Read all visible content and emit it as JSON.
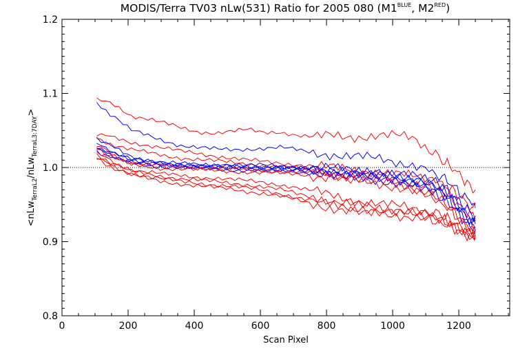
{
  "chart_data": {
    "type": "line",
    "title": {
      "main": "MODIS/Terra TV03 nLw(531) Ratio for 2005 080 (M1",
      "sup1": "BLUE",
      "mid": ", M2",
      "sup2": "RED",
      "end": ")"
    },
    "xlabel": "Scan Pixel",
    "ylabel": {
      "a": "<nLw",
      "a_sub": "TerraL2",
      "b": "/nLw",
      "b_sub": "TerraL3:7DAY",
      "c": ">"
    },
    "xlim": [
      0,
      1354
    ],
    "ylim": [
      0.8,
      1.2
    ],
    "xticks": [
      "0",
      "200",
      "400",
      "600",
      "800",
      "1000",
      "1200"
    ],
    "xtick_values": [
      0,
      200,
      400,
      600,
      800,
      1000,
      1200
    ],
    "yticks": [
      "0.8",
      "0.9",
      "1.0",
      "1.1",
      "1.2"
    ],
    "ytick_values": [
      0.8,
      0.9,
      1.0,
      1.1,
      1.2
    ],
    "reference_line": 1.0,
    "series_colors": {
      "M1": "#0000ff",
      "M2": "#ff0000"
    },
    "x": [
      105,
      160,
      210,
      260,
      310,
      360,
      410,
      460,
      510,
      560,
      610,
      660,
      710,
      760,
      810,
      860,
      910,
      960,
      1010,
      1060,
      1110,
      1150,
      1180,
      1210,
      1240,
      1250
    ],
    "series": [
      {
        "group": "M2",
        "values": [
          1.093,
          1.084,
          1.07,
          1.066,
          1.06,
          1.053,
          1.048,
          1.047,
          1.049,
          1.051,
          1.047,
          1.048,
          1.044,
          1.041,
          1.043,
          1.041,
          1.042,
          1.044,
          1.043,
          1.039,
          1.024,
          1.009,
          1.0,
          0.987,
          0.971,
          0.97
        ]
      },
      {
        "group": "M1",
        "values": [
          1.086,
          1.068,
          1.05,
          1.043,
          1.036,
          1.03,
          1.027,
          1.025,
          1.024,
          1.025,
          1.026,
          1.027,
          1.024,
          1.02,
          1.018,
          1.015,
          1.014,
          1.012,
          1.008,
          1.004,
          0.997,
          0.987,
          0.977,
          0.963,
          0.953,
          0.952
        ]
      },
      {
        "group": "M2",
        "values": [
          1.046,
          1.04,
          1.034,
          1.03,
          1.026,
          1.022,
          1.019,
          1.016,
          1.013,
          1.01,
          1.008,
          1.006,
          1.004,
          1.002,
          1.0,
          0.998,
          0.996,
          0.994,
          0.991,
          0.988,
          0.984,
          0.978,
          0.97,
          0.958,
          0.946,
          0.945
        ]
      },
      {
        "group": "M2",
        "values": [
          1.038,
          1.03,
          1.024,
          1.02,
          1.016,
          1.013,
          1.011,
          1.009,
          1.007,
          1.005,
          1.003,
          1.001,
          0.999,
          0.996,
          0.993,
          0.991,
          0.989,
          0.987,
          0.984,
          0.98,
          0.975,
          0.968,
          0.958,
          0.945,
          0.934,
          0.932
        ]
      },
      {
        "group": "M1",
        "values": [
          1.04,
          1.026,
          1.015,
          1.01,
          1.007,
          1.005,
          1.004,
          1.004,
          1.004,
          1.003,
          1.003,
          1.002,
          1.001,
          1.0,
          0.999,
          0.997,
          0.996,
          0.994,
          0.991,
          0.988,
          0.983,
          0.975,
          0.964,
          0.95,
          0.937,
          0.935
        ]
      },
      {
        "group": "M1",
        "values": [
          1.032,
          1.02,
          1.012,
          1.008,
          1.005,
          1.004,
          1.003,
          1.002,
          1.002,
          1.001,
          1.001,
          1.0,
          0.999,
          0.997,
          0.996,
          0.994,
          0.993,
          0.991,
          0.988,
          0.985,
          0.98,
          0.971,
          0.96,
          0.944,
          0.93,
          0.928
        ]
      },
      {
        "group": "M1",
        "values": [
          1.028,
          1.018,
          1.01,
          1.006,
          1.004,
          1.003,
          1.002,
          1.001,
          1.0,
          1.0,
          0.999,
          0.999,
          0.998,
          0.996,
          0.994,
          0.992,
          0.99,
          0.988,
          0.985,
          0.982,
          0.977,
          0.968,
          0.956,
          0.94,
          0.926,
          0.924
        ]
      },
      {
        "group": "M1",
        "values": [
          1.025,
          1.015,
          1.008,
          1.005,
          1.003,
          1.002,
          1.001,
          1.0,
          0.999,
          0.998,
          0.998,
          0.997,
          0.996,
          0.995,
          0.993,
          0.99,
          0.988,
          0.985,
          0.982,
          0.979,
          0.973,
          0.964,
          0.952,
          0.936,
          0.922,
          0.92
        ]
      },
      {
        "group": "M1",
        "values": [
          1.022,
          1.012,
          1.006,
          1.003,
          1.001,
          1.0,
          0.999,
          0.998,
          0.997,
          0.996,
          0.996,
          0.995,
          0.994,
          0.993,
          0.991,
          0.988,
          0.986,
          0.983,
          0.98,
          0.976,
          0.97,
          0.96,
          0.948,
          0.932,
          0.918,
          0.917
        ]
      },
      {
        "group": "M2",
        "values": [
          1.03,
          1.016,
          1.006,
          1.004,
          1.002,
          1.001,
          1.0,
          0.999,
          0.998,
          0.997,
          0.996,
          0.995,
          0.994,
          0.992,
          0.99,
          0.987,
          0.984,
          0.981,
          0.977,
          0.972,
          0.965,
          0.955,
          0.942,
          0.928,
          0.915,
          0.913
        ]
      },
      {
        "group": "M2",
        "values": [
          1.026,
          1.012,
          1.004,
          1.001,
          0.999,
          0.998,
          0.997,
          0.996,
          0.995,
          0.994,
          0.993,
          0.992,
          0.991,
          0.989,
          0.987,
          0.984,
          0.981,
          0.978,
          0.974,
          0.969,
          0.962,
          0.952,
          0.94,
          0.926,
          0.914,
          0.912
        ]
      },
      {
        "group": "M2",
        "values": [
          1.02,
          1.006,
          0.997,
          0.994,
          0.991,
          0.989,
          0.987,
          0.986,
          0.984,
          0.982,
          0.98,
          0.977,
          0.973,
          0.968,
          0.963,
          0.958,
          0.954,
          0.951,
          0.948,
          0.945,
          0.941,
          0.935,
          0.928,
          0.918,
          0.91,
          0.909
        ]
      },
      {
        "group": "M2",
        "values": [
          1.017,
          1.004,
          0.995,
          0.991,
          0.988,
          0.985,
          0.983,
          0.981,
          0.979,
          0.977,
          0.974,
          0.97,
          0.965,
          0.96,
          0.955,
          0.951,
          0.948,
          0.945,
          0.943,
          0.941,
          0.937,
          0.931,
          0.924,
          0.915,
          0.908,
          0.907
        ]
      },
      {
        "group": "M2",
        "values": [
          1.014,
          1.0,
          0.992,
          0.988,
          0.984,
          0.981,
          0.979,
          0.977,
          0.975,
          0.972,
          0.969,
          0.965,
          0.96,
          0.955,
          0.95,
          0.946,
          0.943,
          0.941,
          0.939,
          0.937,
          0.934,
          0.928,
          0.921,
          0.913,
          0.907,
          0.906
        ]
      },
      {
        "group": "M2",
        "values": [
          1.012,
          0.998,
          0.99,
          0.985,
          0.981,
          0.978,
          0.975,
          0.973,
          0.971,
          0.968,
          0.965,
          0.961,
          0.956,
          0.951,
          0.946,
          0.942,
          0.94,
          0.938,
          0.936,
          0.934,
          0.931,
          0.925,
          0.919,
          0.911,
          0.906,
          0.905
        ]
      }
    ]
  }
}
